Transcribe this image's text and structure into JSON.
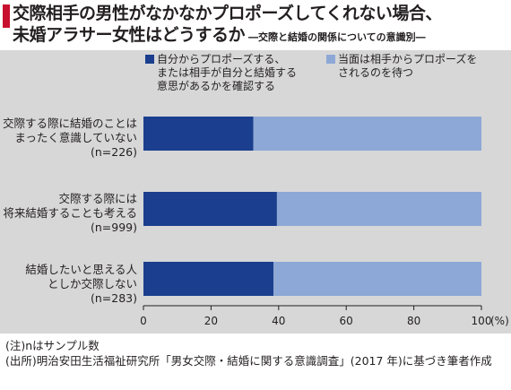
{
  "title": {
    "line1": "交際相手の男性がなかなかプロポーズしてくれない場合、",
    "line2": "未婚アラサー女性はどうするか",
    "subtitle": "―交際と結婚の関係についての意識別―"
  },
  "colors": {
    "series1": "#1b3f8e",
    "series2": "#8da8d6",
    "panel": "#d7d7d8",
    "accent": "#c8102e"
  },
  "chart_data": {
    "type": "bar",
    "orientation": "horizontal",
    "stacked": true,
    "categories": [
      "交際する際に結婚のことは\nまったく意識していない\n(n=226)",
      "交際する際には\n将来結婚することも考える\n(n=999)",
      "結婚したいと思える人\nとしか交際しない\n(n=283)"
    ],
    "series": [
      {
        "name": "自分からプロポーズする、\nまたは相手が自分と結婚する\n意思があるかを確認する",
        "values": [
          32.5,
          39.5,
          38.5
        ]
      },
      {
        "name": "当面は相手からプロポーズを\nされるのを待つ",
        "values": [
          67.5,
          60.5,
          61.5
        ]
      }
    ],
    "xlim": [
      0,
      100
    ],
    "xticks": [
      "0",
      "20",
      "40",
      "60",
      "80",
      "100"
    ],
    "xunit": "(%)",
    "grid": false,
    "legend": "top"
  },
  "notes": [
    "(注)nはサンプル数",
    "(出所)明治安田生活福祉研究所「男女交際・結婚に関する意識調査」(2017 年)に基づき筆者作成"
  ]
}
